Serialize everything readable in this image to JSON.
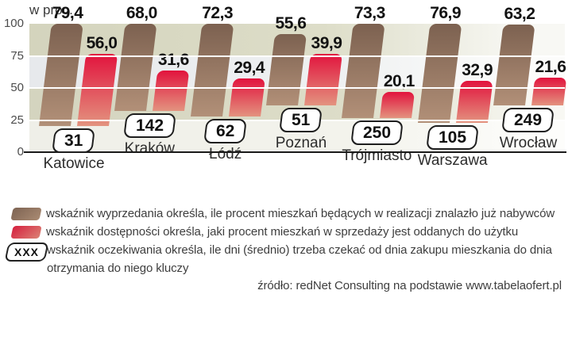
{
  "chart_data": {
    "type": "bar",
    "title": "w proc.",
    "ylabel": "",
    "ylim": [
      0,
      100
    ],
    "y_ticks": [
      "100",
      "75",
      "50",
      "25",
      "0"
    ],
    "grid": "horizontal-white-lines",
    "legend_position": "bottom",
    "categories": [
      "Katowice",
      "Kraków",
      "Łódź",
      "Poznań",
      "Trójmiasto",
      "Warszawa",
      "Wrocław"
    ],
    "series": [
      {
        "name": "wskaźnik wyprzedania",
        "color_top": "#7c6150",
        "color_bottom": "#b29078",
        "values": [
          79.4,
          68.0,
          72.3,
          55.6,
          73.3,
          76.9,
          63.2
        ]
      },
      {
        "name": "wskaźnik dostępności",
        "color_top": "#e2133d",
        "color_bottom": "#e3937f",
        "values": [
          56.0,
          31.6,
          29.4,
          39.9,
          20.1,
          32.9,
          21.6
        ]
      }
    ],
    "waiting_days": [
      31,
      142,
      62,
      51,
      250,
      105,
      249
    ]
  },
  "legend": {
    "items": [
      {
        "swatch": "brown",
        "text": "wskaźnik wyprzedania określa, ile procent mieszkań będących w realizacji znalazło już nabywców"
      },
      {
        "swatch": "red",
        "text": "wskaźnik dostępności określa, jaki procent mieszkań w sprzedaży jest oddanych do użytku"
      },
      {
        "swatch": "xxx-badge",
        "badge_label": "XXX",
        "text": "wskaźnik oczekiwania określa, ile dni (średnio) trzeba czekać od dnia zakupu mieszkania do dnia otrzymania do niego kluczy"
      }
    ]
  },
  "source": "źródło: redNet Consulting na podstawie www.tabelaofert.pl"
}
